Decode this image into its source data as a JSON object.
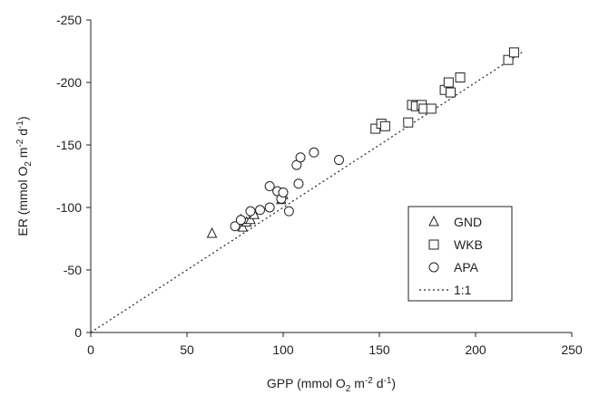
{
  "chart_data": {
    "type": "scatter",
    "xlabel": {
      "pre": "GPP (mmol O",
      "sub": "2",
      "mid": " m",
      "sup1": "-2",
      "mid2": " d",
      "sup2": "-1",
      "post": ")"
    },
    "ylabel": {
      "pre": "ER (mmol O",
      "sub": "2",
      "mid": " m",
      "sup1": "-2",
      "mid2": " d",
      "sup2": "-1",
      "post": ")"
    },
    "xlim": [
      0,
      250
    ],
    "ylim": [
      0,
      -250
    ],
    "xticks": [
      "0",
      "50",
      "100",
      "150",
      "200",
      "250"
    ],
    "yticks": [
      "0",
      "-50",
      "-100",
      "-150",
      "-200",
      "-250"
    ],
    "grid": false,
    "legend_position": "bottom-right",
    "series": [
      {
        "name": "GND",
        "marker": "triangle",
        "points": [
          [
            63,
            -79
          ],
          [
            79,
            -84
          ],
          [
            81,
            -88
          ],
          [
            83,
            -90
          ],
          [
            85,
            -94
          ],
          [
            99,
            -106
          ],
          [
            100,
            -110
          ],
          [
            78,
            -90
          ]
        ]
      },
      {
        "name": "WKB",
        "marker": "square",
        "points": [
          [
            148,
            -163
          ],
          [
            151,
            -167
          ],
          [
            153,
            -165
          ],
          [
            165,
            -168
          ],
          [
            167,
            -182
          ],
          [
            169,
            -181
          ],
          [
            172,
            -182
          ],
          [
            173,
            -179
          ],
          [
            177,
            -179
          ],
          [
            184,
            -194
          ],
          [
            186,
            -200
          ],
          [
            187,
            -192
          ],
          [
            192,
            -204
          ],
          [
            217,
            -218
          ],
          [
            220,
            -224
          ]
        ]
      },
      {
        "name": "APA",
        "marker": "circle",
        "points": [
          [
            75,
            -85
          ],
          [
            78,
            -90
          ],
          [
            83,
            -97
          ],
          [
            88,
            -98
          ],
          [
            93,
            -100
          ],
          [
            93,
            -117
          ],
          [
            97,
            -113
          ],
          [
            99,
            -107
          ],
          [
            100,
            -112
          ],
          [
            103,
            -97
          ],
          [
            107,
            -134
          ],
          [
            108,
            -119
          ],
          [
            109,
            -140
          ],
          [
            116,
            -144
          ],
          [
            129,
            -138
          ]
        ]
      },
      {
        "name": "1:1",
        "marker": "dotted-line",
        "points": [
          [
            0,
            0
          ],
          [
            225,
            -225
          ]
        ]
      }
    ]
  }
}
